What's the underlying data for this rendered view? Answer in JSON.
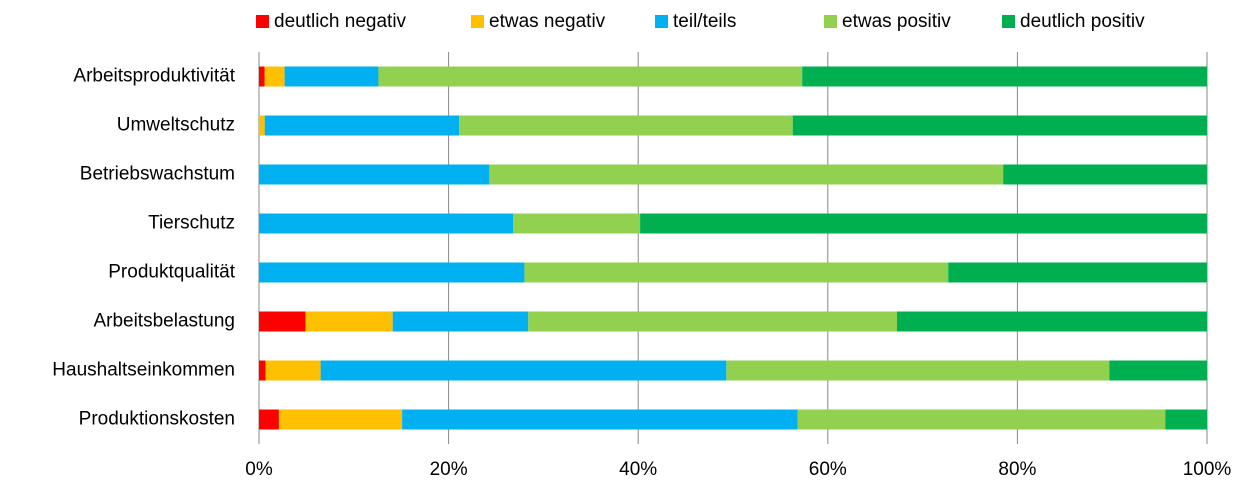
{
  "chart_data": {
    "type": "stacked_bar_horizontal",
    "categories": [
      "Arbeitsproduktivität",
      "Umweltschutz",
      "Betriebswachstum",
      "Tierschutz",
      "Produktqualität",
      "Arbeitsbelastung",
      "Haushaltseinkommen",
      "Produktionskosten"
    ],
    "series": [
      {
        "name": "deutlich negativ",
        "color": "#ff0000",
        "values": [
          0.6,
          0,
          0,
          0,
          0,
          4.9,
          0.7,
          2.1
        ]
      },
      {
        "name": "etwas negativ",
        "color": "#ffc000",
        "values": [
          2.1,
          0.6,
          0,
          0,
          0,
          9.2,
          5.8,
          13.0
        ]
      },
      {
        "name": "teil/teils",
        "color": "#00b0f0",
        "values": [
          9.9,
          20.5,
          24.3,
          26.8,
          28.0,
          14.3,
          42.8,
          41.7
        ]
      },
      {
        "name": "etwas positiv",
        "color": "#92d050",
        "values": [
          44.7,
          35.2,
          54.2,
          13.4,
          44.7,
          38.9,
          40.4,
          38.8
        ]
      },
      {
        "name": "deutlich positiv",
        "color": "#00b050",
        "values": [
          42.7,
          43.7,
          21.5,
          59.8,
          27.3,
          32.7,
          10.3,
          4.4
        ]
      }
    ],
    "xlim": [
      0,
      100
    ],
    "xticks": [
      {
        "value": 0,
        "label": "0%"
      },
      {
        "value": 20,
        "label": "20%"
      },
      {
        "value": 40,
        "label": "40%"
      },
      {
        "value": 60,
        "label": "60%"
      },
      {
        "value": 80,
        "label": "80%"
      },
      {
        "value": 100,
        "label": "100%"
      }
    ],
    "grid": true,
    "legend": "top"
  }
}
